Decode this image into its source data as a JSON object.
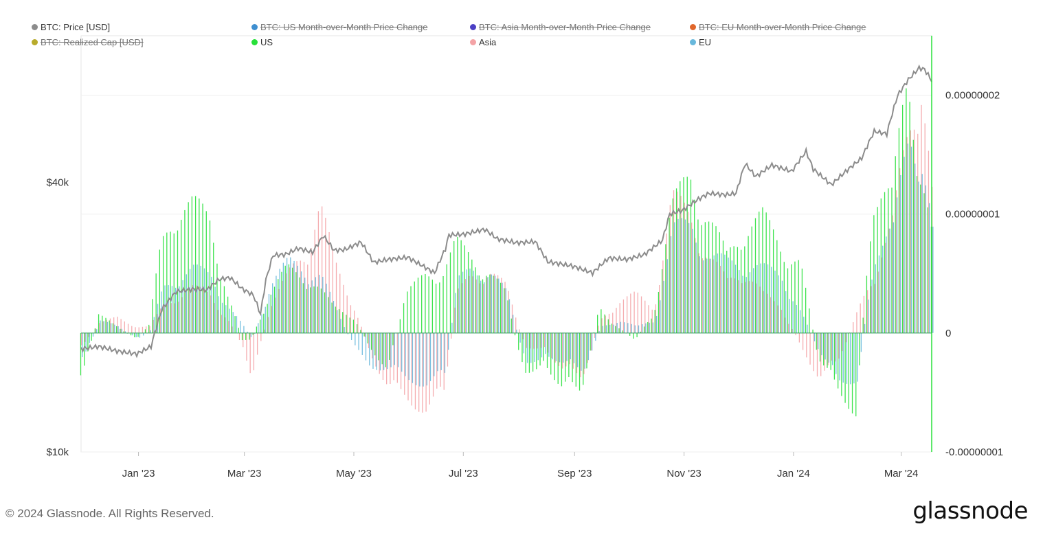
{
  "legend": [
    {
      "label": "BTC: Price [USD]",
      "color": "#8c8c8c",
      "enabled": true
    },
    {
      "label": "BTC: US Month-over-Month Price Change",
      "color": "#3f8fd0",
      "enabled": false
    },
    {
      "label": "BTC: Asia Month-over-Month Price Change",
      "color": "#4b3fc4",
      "enabled": false
    },
    {
      "label": "BTC: EU Month-over-Month Price Change",
      "color": "#e0662a",
      "enabled": false
    },
    {
      "label": "BTC: Realized Cap [USD]",
      "color": "#b8ab2c",
      "enabled": false
    },
    {
      "label": "US",
      "color": "#28e03a",
      "enabled": true
    },
    {
      "label": "Asia",
      "color": "#f4a3a6",
      "enabled": true
    },
    {
      "label": "EU",
      "color": "#68b8dc",
      "enabled": true
    }
  ],
  "footer": {
    "copyright": "© 2024 Glassnode. All Rights Reserved.",
    "brand": "glassnode"
  },
  "chart_data": {
    "type": "bar",
    "title": "",
    "y_left": {
      "scale": "log",
      "ticks": [
        "$10k",
        "$40k"
      ],
      "tick_values": [
        10000,
        40000
      ],
      "range": [
        10000,
        85000
      ]
    },
    "y_right": {
      "ticks": [
        "0.00000002",
        "0.00000001",
        "0",
        "-0.00000001"
      ],
      "tick_values": [
        2e-08,
        1e-08,
        0,
        -1e-08
      ],
      "range": [
        -1e-08,
        2.5e-08
      ]
    },
    "x_ticks": [
      "Jan '23",
      "Mar '23",
      "May '23",
      "Jul '23",
      "Sep '23",
      "Nov '23",
      "Jan '24",
      "Mar '24"
    ],
    "x_tick_dates": [
      "2023-01-01",
      "2023-03-01",
      "2023-05-01",
      "2023-07-01",
      "2023-09-01",
      "2023-11-01",
      "2024-01-01",
      "2024-03-01"
    ],
    "x_range": [
      "2022-11-30",
      "2024-03-18"
    ],
    "grid": true,
    "legend_position": "top",
    "series": [
      {
        "name": "BTC: Price [USD]",
        "kind": "line",
        "axis": "left",
        "points": [
          [
            "2022-12-01",
            17000
          ],
          [
            "2022-12-10",
            17200
          ],
          [
            "2022-12-20",
            16800
          ],
          [
            "2022-12-31",
            16550
          ],
          [
            "2023-01-08",
            17200
          ],
          [
            "2023-01-14",
            20800
          ],
          [
            "2023-01-22",
            22800
          ],
          [
            "2023-01-31",
            23100
          ],
          [
            "2023-02-08",
            23000
          ],
          [
            "2023-02-15",
            24300
          ],
          [
            "2023-02-21",
            24500
          ],
          [
            "2023-02-28",
            23100
          ],
          [
            "2023-03-06",
            22400
          ],
          [
            "2023-03-10",
            20300
          ],
          [
            "2023-03-13",
            24200
          ],
          [
            "2023-03-17",
            27500
          ],
          [
            "2023-03-24",
            27600
          ],
          [
            "2023-03-31",
            28500
          ],
          [
            "2023-04-08",
            27900
          ],
          [
            "2023-04-14",
            30400
          ],
          [
            "2023-04-20",
            28200
          ],
          [
            "2023-04-26",
            28300
          ],
          [
            "2023-05-05",
            29400
          ],
          [
            "2023-05-12",
            26500
          ],
          [
            "2023-05-20",
            26900
          ],
          [
            "2023-05-31",
            27200
          ],
          [
            "2023-06-10",
            25800
          ],
          [
            "2023-06-15",
            25100
          ],
          [
            "2023-06-21",
            28400
          ],
          [
            "2023-06-23",
            30500
          ],
          [
            "2023-07-01",
            30600
          ],
          [
            "2023-07-13",
            31400
          ],
          [
            "2023-07-20",
            29900
          ],
          [
            "2023-07-31",
            29300
          ],
          [
            "2023-08-10",
            29500
          ],
          [
            "2023-08-17",
            26600
          ],
          [
            "2023-08-31",
            26000
          ],
          [
            "2023-09-11",
            25100
          ],
          [
            "2023-09-20",
            27100
          ],
          [
            "2023-09-30",
            26900
          ],
          [
            "2023-10-10",
            27600
          ],
          [
            "2023-10-20",
            29700
          ],
          [
            "2023-10-24",
            34000
          ],
          [
            "2023-10-31",
            34600
          ],
          [
            "2023-11-09",
            36700
          ],
          [
            "2023-11-15",
            37800
          ],
          [
            "2023-11-24",
            37500
          ],
          [
            "2023-11-30",
            37800
          ],
          [
            "2023-12-05",
            44000
          ],
          [
            "2023-12-11",
            41200
          ],
          [
            "2023-12-20",
            43700
          ],
          [
            "2023-12-31",
            42300
          ],
          [
            "2024-01-08",
            46900
          ],
          [
            "2024-01-12",
            42800
          ],
          [
            "2024-01-22",
            39500
          ],
          [
            "2024-01-31",
            42600
          ],
          [
            "2024-02-08",
            45300
          ],
          [
            "2024-02-15",
            52000
          ],
          [
            "2024-02-22",
            51300
          ],
          [
            "2024-02-28",
            62500
          ],
          [
            "2024-03-05",
            67800
          ],
          [
            "2024-03-11",
            72000
          ],
          [
            "2024-03-14",
            71500
          ],
          [
            "2024-03-18",
            67500
          ]
        ]
      },
      {
        "name": "US",
        "kind": "bar",
        "axis": "right",
        "points": [
          [
            "2022-12-01",
            -3.5e-09
          ],
          [
            "2022-12-10",
            1.5e-09
          ],
          [
            "2022-12-20",
            5e-10
          ],
          [
            "2022-12-31",
            -5e-10
          ],
          [
            "2023-01-07",
            6e-10
          ],
          [
            "2023-01-14",
            7e-09
          ],
          [
            "2023-01-22",
            1e-08
          ],
          [
            "2023-01-31",
            1e-08
          ],
          [
            "2023-02-10",
            9e-09
          ],
          [
            "2023-02-20",
            3e-09
          ],
          [
            "2023-02-28",
            -5e-10
          ],
          [
            "2023-03-05",
            -5e-10
          ],
          [
            "2023-03-15",
            3e-09
          ],
          [
            "2023-03-25",
            5e-09
          ],
          [
            "2023-04-05",
            4.5e-09
          ],
          [
            "2023-04-12",
            3.5e-09
          ],
          [
            "2023-04-20",
            2e-09
          ],
          [
            "2023-04-30",
            1.5e-09
          ],
          [
            "2023-05-10",
            -1e-09
          ],
          [
            "2023-05-20",
            -3e-09
          ],
          [
            "2023-05-30",
            3e-09
          ],
          [
            "2023-06-10",
            4.5e-09
          ],
          [
            "2023-06-20",
            5e-09
          ],
          [
            "2023-06-27",
            7e-09
          ],
          [
            "2023-07-05",
            6e-09
          ],
          [
            "2023-07-15",
            5e-09
          ],
          [
            "2023-07-25",
            3e-09
          ],
          [
            "2023-08-05",
            -4e-09
          ],
          [
            "2023-08-15",
            -2e-09
          ],
          [
            "2023-08-25",
            -4.5e-09
          ],
          [
            "2023-09-05",
            -4.5e-09
          ],
          [
            "2023-09-15",
            2e-09
          ],
          [
            "2023-09-25",
            5e-10
          ],
          [
            "2023-10-05",
            -5e-10
          ],
          [
            "2023-10-15",
            1.5e-09
          ],
          [
            "2023-10-25",
            9.5e-09
          ],
          [
            "2023-11-05",
            1.25e-08
          ],
          [
            "2023-11-15",
            9e-09
          ],
          [
            "2023-11-25",
            6e-09
          ],
          [
            "2023-12-05",
            8.5e-09
          ],
          [
            "2023-12-15",
            9e-09
          ],
          [
            "2023-12-25",
            7e-09
          ],
          [
            "2024-01-05",
            5.5e-09
          ],
          [
            "2024-01-15",
            -2e-09
          ],
          [
            "2024-01-25",
            -4.5e-09
          ],
          [
            "2024-02-05",
            -6e-09
          ],
          [
            "2024-02-15",
            1.2e-08
          ],
          [
            "2024-02-25",
            1.05e-08
          ],
          [
            "2024-03-05",
            2e-08
          ],
          [
            "2024-03-12",
            1.4e-08
          ],
          [
            "2024-03-18",
            8e-09
          ]
        ]
      },
      {
        "name": "Asia",
        "kind": "bar",
        "axis": "right",
        "points": [
          [
            "2022-12-01",
            -1e-09
          ],
          [
            "2022-12-10",
            8e-10
          ],
          [
            "2022-12-20",
            1.2e-09
          ],
          [
            "2022-12-31",
            5e-10
          ],
          [
            "2023-01-07",
            5e-10
          ],
          [
            "2023-01-14",
            2e-09
          ],
          [
            "2023-01-22",
            3e-09
          ],
          [
            "2023-01-31",
            3.5e-09
          ],
          [
            "2023-02-10",
            3e-09
          ],
          [
            "2023-02-20",
            1e-09
          ],
          [
            "2023-02-28",
            -1e-09
          ],
          [
            "2023-03-05",
            -3.5e-09
          ],
          [
            "2023-03-15",
            2e-09
          ],
          [
            "2023-03-25",
            4.5e-09
          ],
          [
            "2023-04-05",
            7e-09
          ],
          [
            "2023-04-12",
            1e-08
          ],
          [
            "2023-04-20",
            5.5e-09
          ],
          [
            "2023-04-30",
            2.5e-09
          ],
          [
            "2023-05-10",
            -1.5e-09
          ],
          [
            "2023-05-20",
            -4.5e-09
          ],
          [
            "2023-05-30",
            -5e-09
          ],
          [
            "2023-06-10",
            -6e-09
          ],
          [
            "2023-06-20",
            -5e-09
          ],
          [
            "2023-06-27",
            3e-09
          ],
          [
            "2023-07-05",
            4.5e-09
          ],
          [
            "2023-07-15",
            5e-09
          ],
          [
            "2023-07-25",
            3.5e-09
          ],
          [
            "2023-08-05",
            -1.5e-09
          ],
          [
            "2023-08-15",
            -1e-09
          ],
          [
            "2023-08-25",
            -3e-09
          ],
          [
            "2023-09-05",
            -3.5e-09
          ],
          [
            "2023-09-15",
            1e-09
          ],
          [
            "2023-09-25",
            2.5e-09
          ],
          [
            "2023-10-05",
            3e-09
          ],
          [
            "2023-10-15",
            2e-09
          ],
          [
            "2023-10-25",
            1.05e-08
          ],
          [
            "2023-11-05",
            9e-09
          ],
          [
            "2023-11-15",
            6e-09
          ],
          [
            "2023-11-25",
            4e-09
          ],
          [
            "2023-12-05",
            5e-09
          ],
          [
            "2023-12-15",
            3e-09
          ],
          [
            "2023-12-25",
            2e-09
          ],
          [
            "2024-01-05",
            -1e-09
          ],
          [
            "2024-01-15",
            -3.5e-09
          ],
          [
            "2024-01-25",
            -2.5e-09
          ],
          [
            "2024-02-05",
            1.5e-09
          ],
          [
            "2024-02-15",
            5e-09
          ],
          [
            "2024-02-25",
            8.5e-09
          ],
          [
            "2024-03-05",
            1.6e-08
          ],
          [
            "2024-03-12",
            2.15e-08
          ],
          [
            "2024-03-18",
            1.1e-08
          ]
        ]
      },
      {
        "name": "EU",
        "kind": "bar",
        "axis": "right",
        "points": [
          [
            "2022-12-01",
            -2e-09
          ],
          [
            "2022-12-10",
            1e-09
          ],
          [
            "2022-12-20",
            5e-10
          ],
          [
            "2022-12-31",
            -5e-10
          ],
          [
            "2023-01-07",
            2e-10
          ],
          [
            "2023-01-14",
            3.5e-09
          ],
          [
            "2023-01-22",
            4.5e-09
          ],
          [
            "2023-01-31",
            5e-09
          ],
          [
            "2023-02-10",
            4.5e-09
          ],
          [
            "2023-02-20",
            2e-09
          ],
          [
            "2023-02-28",
            5e-10
          ],
          [
            "2023-03-05",
            -5e-10
          ],
          [
            "2023-03-15",
            4e-09
          ],
          [
            "2023-03-25",
            5.5e-09
          ],
          [
            "2023-04-05",
            5e-09
          ],
          [
            "2023-04-12",
            4.5e-09
          ],
          [
            "2023-04-20",
            2e-09
          ],
          [
            "2023-04-30",
            -1e-09
          ],
          [
            "2023-05-10",
            -2.5e-09
          ],
          [
            "2023-05-20",
            -3e-09
          ],
          [
            "2023-05-30",
            -3.5e-09
          ],
          [
            "2023-06-10",
            -4e-09
          ],
          [
            "2023-06-20",
            -3.5e-09
          ],
          [
            "2023-06-27",
            4e-09
          ],
          [
            "2023-07-05",
            5e-09
          ],
          [
            "2023-07-15",
            5e-09
          ],
          [
            "2023-07-25",
            3e-09
          ],
          [
            "2023-08-05",
            -3e-09
          ],
          [
            "2023-08-15",
            -1.5e-09
          ],
          [
            "2023-08-25",
            -2.5e-09
          ],
          [
            "2023-09-05",
            -3e-09
          ],
          [
            "2023-09-15",
            5e-10
          ],
          [
            "2023-09-25",
            1e-09
          ],
          [
            "2023-10-05",
            5e-10
          ],
          [
            "2023-10-15",
            1e-09
          ],
          [
            "2023-10-25",
            8e-09
          ],
          [
            "2023-11-05",
            8.5e-09
          ],
          [
            "2023-11-15",
            6e-09
          ],
          [
            "2023-11-25",
            5.5e-09
          ],
          [
            "2023-12-05",
            5.5e-09
          ],
          [
            "2023-12-15",
            5e-09
          ],
          [
            "2023-12-25",
            4.5e-09
          ],
          [
            "2024-01-05",
            1.5e-09
          ],
          [
            "2024-01-15",
            -1.5e-09
          ],
          [
            "2024-01-25",
            -4e-09
          ],
          [
            "2024-02-05",
            -3.5e-09
          ],
          [
            "2024-02-15",
            7e-09
          ],
          [
            "2024-02-25",
            8e-09
          ],
          [
            "2024-03-05",
            1.55e-08
          ],
          [
            "2024-03-12",
            1.5e-08
          ],
          [
            "2024-03-18",
            8e-09
          ]
        ]
      }
    ]
  }
}
